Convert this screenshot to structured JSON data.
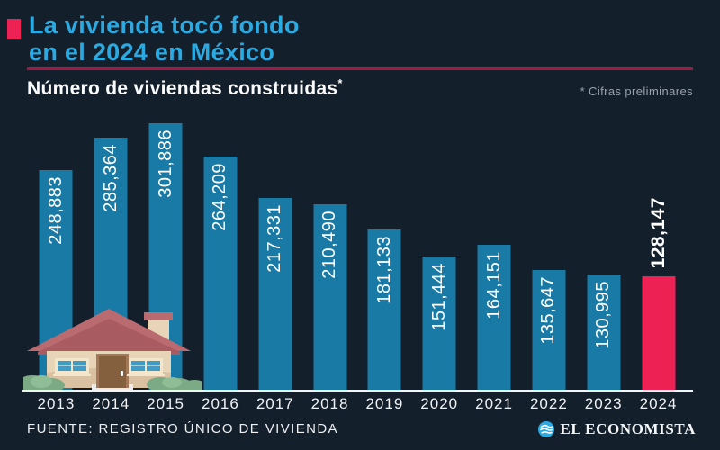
{
  "header": {
    "title_line1": "La vivienda tocó fondo",
    "title_line2": "en el 2024 en México",
    "subtitle": "Número de viviendas construidas",
    "subtitle_mark": "*",
    "note": "* Cifras preliminares"
  },
  "chart_data": {
    "type": "bar",
    "title": "Número de viviendas construidas*",
    "categories": [
      "2013",
      "2014",
      "2015",
      "2016",
      "2017",
      "2018",
      "2019",
      "2020",
      "2021",
      "2022",
      "2023",
      "2024"
    ],
    "values": [
      248883,
      285364,
      301886,
      264209,
      217331,
      210490,
      181133,
      151444,
      164151,
      135647,
      130995,
      128147
    ],
    "labels": [
      "248,883",
      "285,364",
      "301,886",
      "264,209",
      "217,331",
      "210,490",
      "181,133",
      "151,444",
      "164,151",
      "135,647",
      "130,995",
      "128,147"
    ],
    "highlight_category": "2024",
    "bar_color": "#187aa5",
    "highlight_color": "#ed2153",
    "value_label_position": "inside-top-rotated",
    "xlabel": "",
    "ylabel": "",
    "ylim": [
      0,
      301886
    ],
    "grid": false,
    "legend": false
  },
  "footer": {
    "source": "FUENTE: REGISTRO ÚNICO DE VIVIENDA",
    "brand": "EL ECONOMISTA"
  },
  "colors": {
    "background": "#141f2c",
    "title": "#2baae2",
    "accent": "#ed2153",
    "divider": "#9c1c45",
    "bar": "#187aa5",
    "highlight_bar": "#ed2153",
    "axis": "#f2f4f6",
    "note_text": "#99a1ab",
    "brand_icon": "#2baae2"
  }
}
